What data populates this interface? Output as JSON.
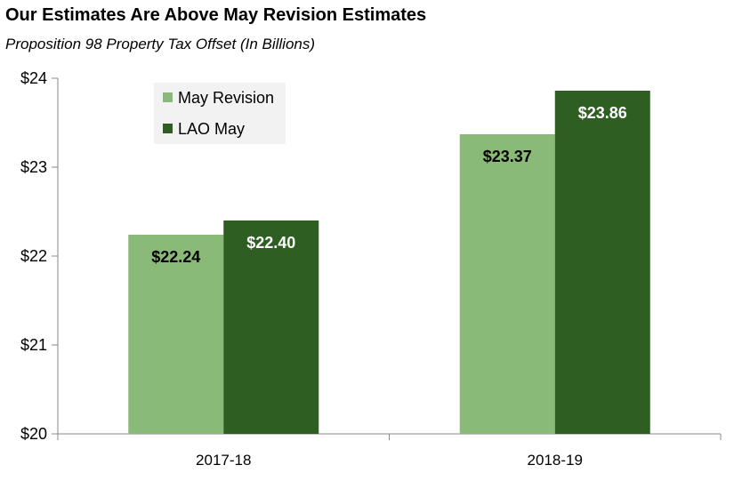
{
  "chart_data": {
    "type": "bar",
    "title": "Our Estimates Are Above May Revision Estimates",
    "subtitle": "Proposition 98 Property Tax Offset (In Billions)",
    "categories": [
      "2017-18",
      "2018-19"
    ],
    "series": [
      {
        "name": "May Revision",
        "values": [
          22.24,
          23.37
        ],
        "labels": [
          "$22.24",
          "$23.37"
        ],
        "color": "#8aba78",
        "label_color": "#000000"
      },
      {
        "name": "LAO May",
        "values": [
          22.4,
          23.86
        ],
        "labels": [
          "$22.40",
          "$23.86"
        ],
        "color": "#2e5e22",
        "label_color": "#ffffff"
      }
    ],
    "ylim": [
      20,
      24
    ],
    "yticks": [
      20,
      21,
      22,
      23,
      24
    ],
    "ytick_labels": [
      "$20",
      "$21",
      "$22",
      "$23",
      "$24"
    ],
    "grid": false,
    "legend_placement": "top-left"
  }
}
